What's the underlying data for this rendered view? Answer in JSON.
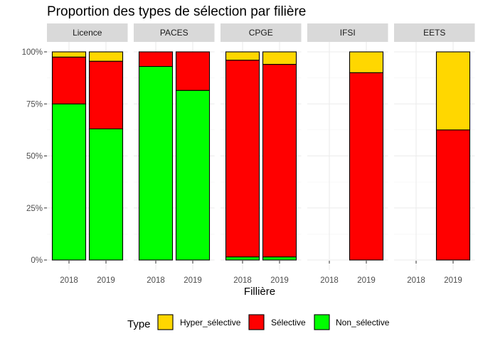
{
  "chart_data": {
    "type": "bar",
    "stacked": true,
    "title": "Proportion des types de sélection par filière",
    "xlabel": "Fillière",
    "ylabel": "",
    "ylim": [
      0,
      1
    ],
    "y_ticks": [
      {
        "value": 0,
        "label": "0%"
      },
      {
        "value": 0.25,
        "label": "25%"
      },
      {
        "value": 0.5,
        "label": "50%"
      },
      {
        "value": 0.75,
        "label": "75%"
      },
      {
        "value": 1,
        "label": "100%"
      }
    ],
    "categories": [
      "2018",
      "2019"
    ],
    "grid": true,
    "legend": {
      "title": "Type",
      "position": "bottom",
      "entries": [
        {
          "key": "hyper",
          "label": "Hyper_sélective",
          "color": "#FFD700"
        },
        {
          "key": "sel",
          "label": "Sélective",
          "color": "#FF0000"
        },
        {
          "key": "non",
          "label": "Non_sélective",
          "color": "#00FF00"
        }
      ]
    },
    "stack_order_bottom_to_top": [
      "non",
      "sel",
      "hyper"
    ],
    "facets": [
      {
        "name": "Licence",
        "bars": [
          {
            "year": "2018",
            "non": 0.75,
            "sel": 0.225,
            "hyper": 0.025
          },
          {
            "year": "2019",
            "non": 0.63,
            "sel": 0.325,
            "hyper": 0.045
          }
        ]
      },
      {
        "name": "PACES",
        "bars": [
          {
            "year": "2018",
            "non": 0.93,
            "sel": 0.07,
            "hyper": 0
          },
          {
            "year": "2019",
            "non": 0.815,
            "sel": 0.185,
            "hyper": 0
          }
        ]
      },
      {
        "name": "CPGE",
        "bars": [
          {
            "year": "2018",
            "non": 0.015,
            "sel": 0.945,
            "hyper": 0.04
          },
          {
            "year": "2019",
            "non": 0.015,
            "sel": 0.925,
            "hyper": 0.06
          }
        ]
      },
      {
        "name": "IFSI",
        "bars": [
          {
            "year": "2019",
            "non": 0,
            "sel": 0.9,
            "hyper": 0.1
          }
        ]
      },
      {
        "name": "EETS",
        "bars": [
          {
            "year": "2019",
            "non": 0,
            "sel": 0.625,
            "hyper": 0.375
          }
        ]
      }
    ]
  }
}
